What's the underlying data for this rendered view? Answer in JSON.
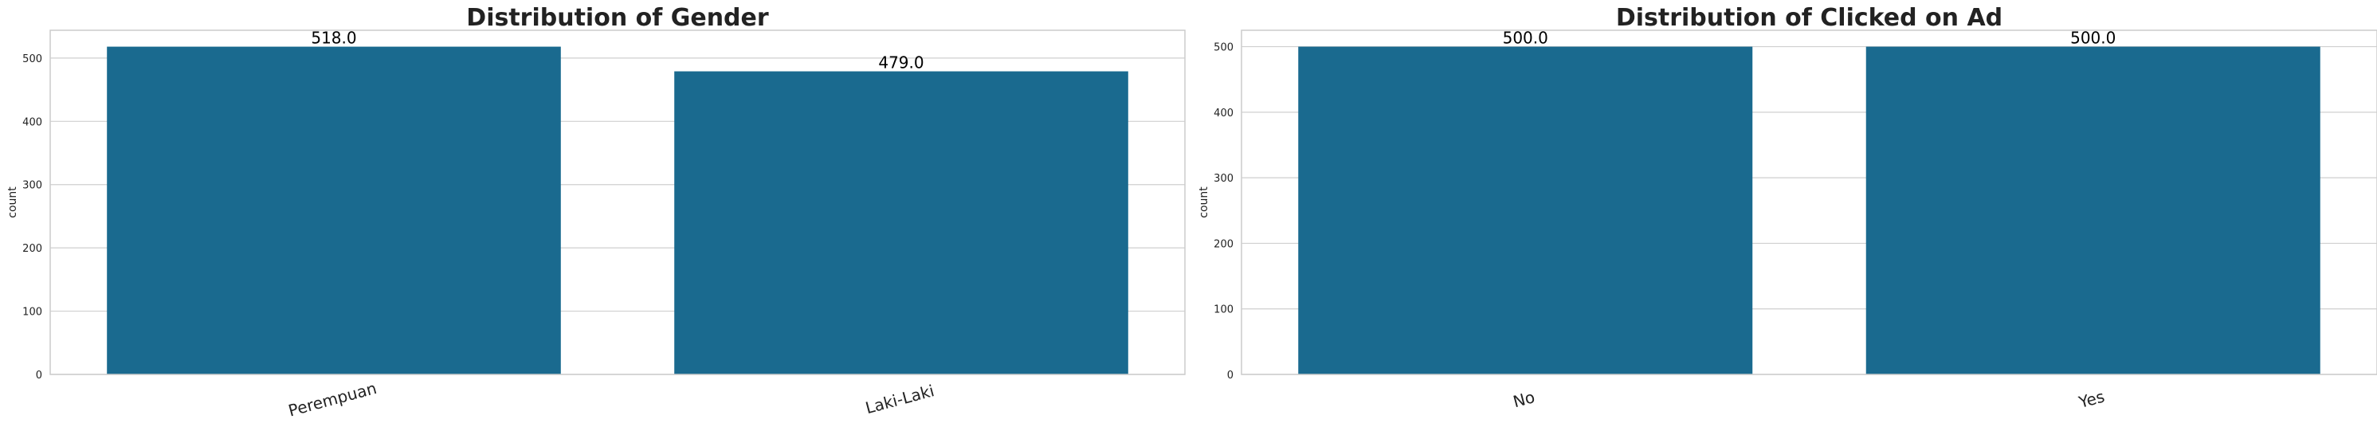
{
  "chart_data": [
    {
      "type": "bar",
      "title": "Distribution of Gender",
      "xlabel": "",
      "ylabel": "count",
      "categories": [
        "Perempuan",
        "Laki-Laki"
      ],
      "values": [
        518,
        479
      ],
      "value_labels": [
        "518.0",
        "479.0"
      ],
      "yticks": [
        0,
        100,
        200,
        300,
        400,
        500
      ],
      "ytick_labels": [
        "0",
        "100",
        "200",
        "300",
        "400",
        "500"
      ],
      "ylim": [
        0,
        543.9
      ],
      "grid": true,
      "bar_color": "#1a6a8f"
    },
    {
      "type": "bar",
      "title": "Distribution of Clicked on Ad",
      "xlabel": "",
      "ylabel": "count",
      "categories": [
        "No",
        "Yes"
      ],
      "values": [
        500,
        500
      ],
      "value_labels": [
        "500.0",
        "500.0"
      ],
      "yticks": [
        0,
        100,
        200,
        300,
        400,
        500
      ],
      "ytick_labels": [
        "0",
        "100",
        "200",
        "300",
        "400",
        "500"
      ],
      "ylim": [
        0,
        525
      ],
      "grid": true,
      "bar_color": "#1a6a8f"
    }
  ]
}
